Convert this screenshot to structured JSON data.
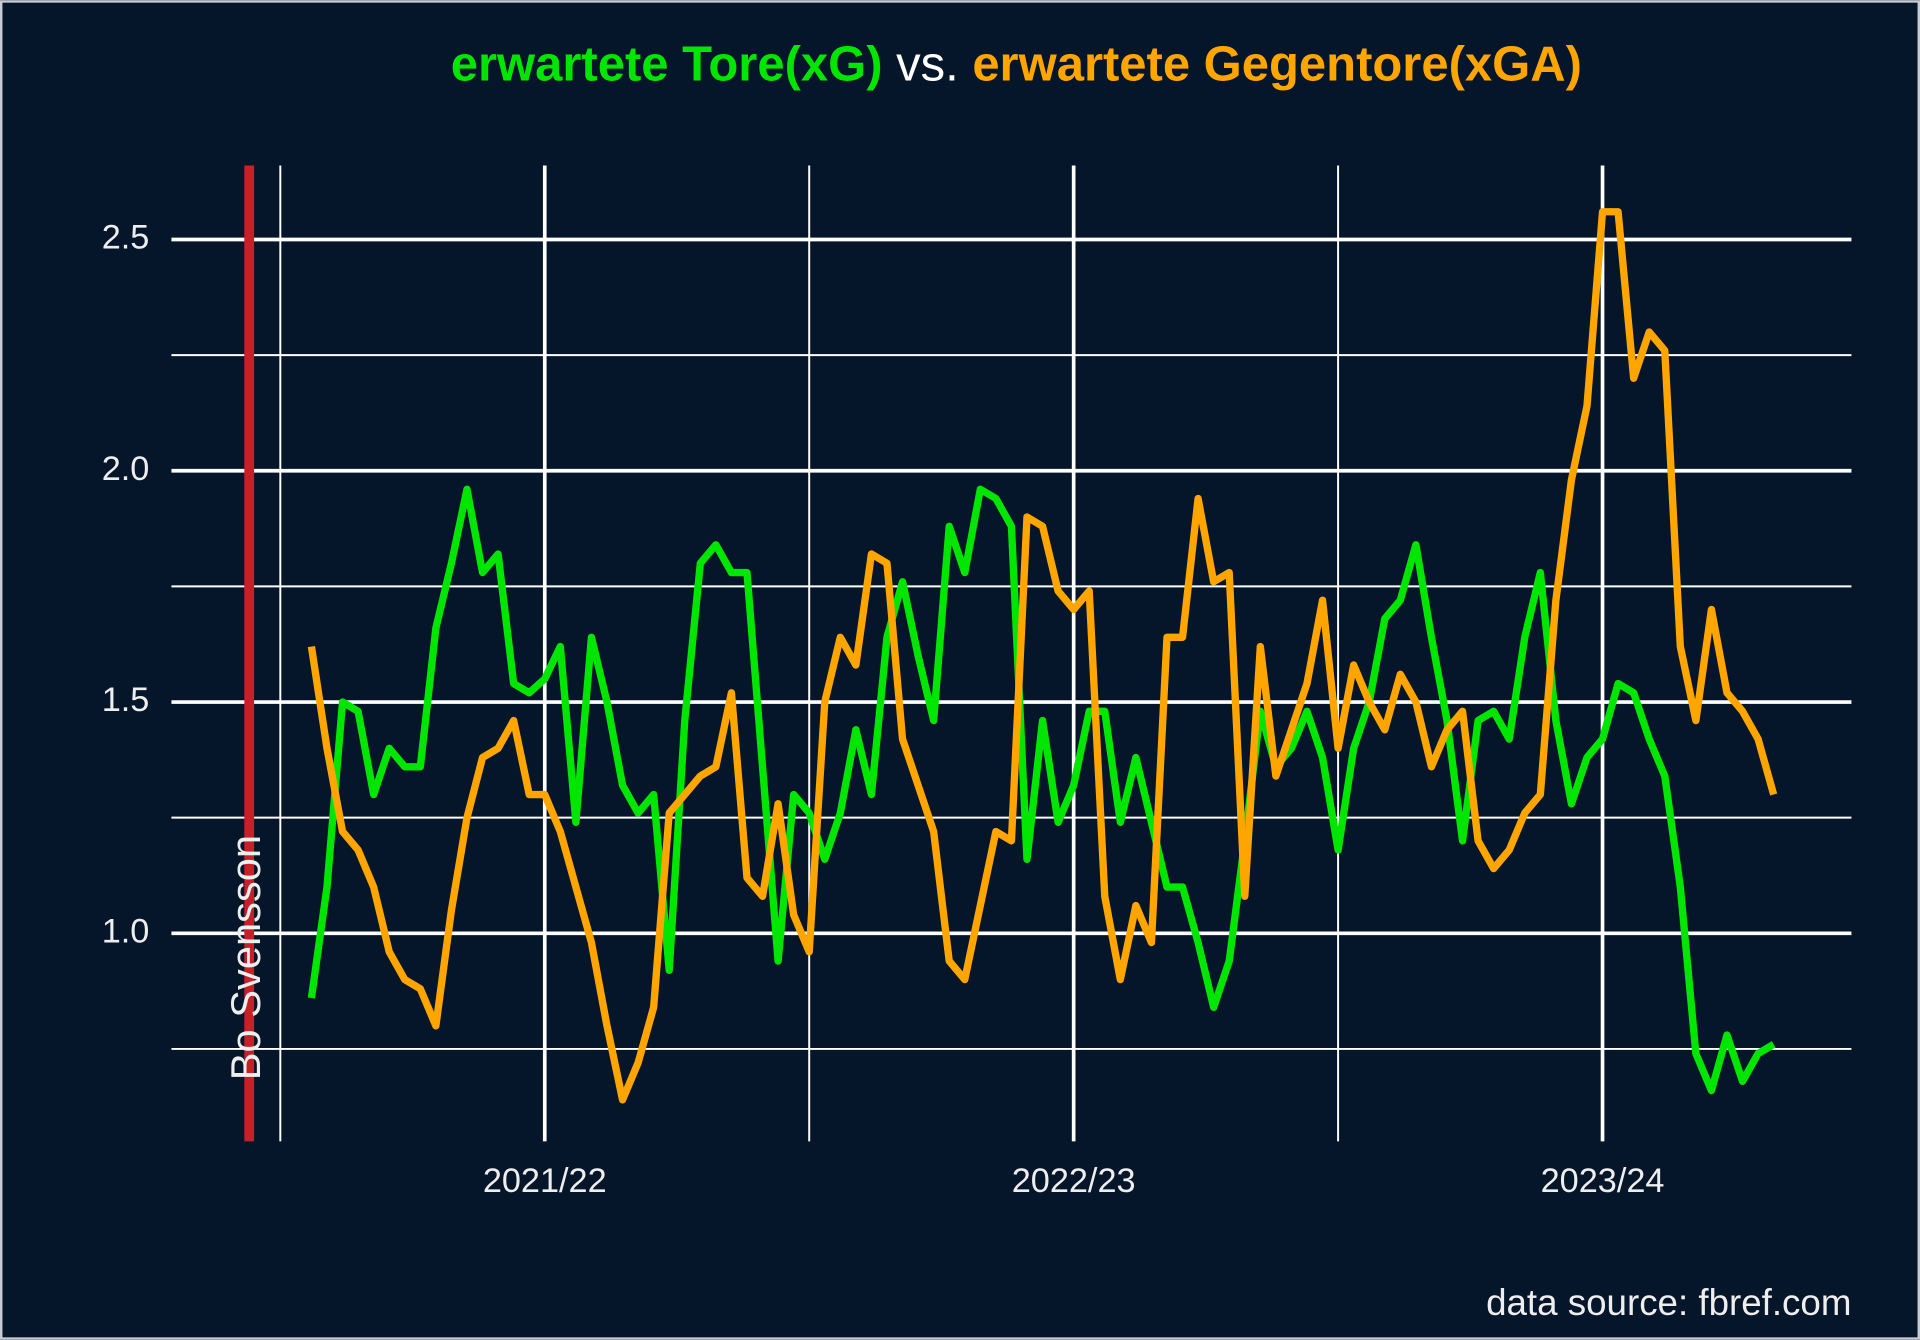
{
  "chart_data": {
    "type": "line",
    "title_connector": "vs.",
    "caption": "data source: fbref.com",
    "x": [
      1,
      2,
      3,
      4,
      5,
      6,
      7,
      8,
      9,
      10,
      11,
      12,
      13,
      14,
      15,
      16,
      17,
      18,
      19,
      20,
      21,
      22,
      23,
      24,
      25,
      26,
      27,
      28,
      29,
      30,
      31,
      32,
      33,
      34,
      35,
      36,
      37,
      38,
      39,
      40,
      41,
      42,
      43,
      44,
      45,
      46,
      47,
      48,
      49,
      50,
      51,
      52,
      53,
      54,
      55,
      56,
      57,
      58,
      59,
      60,
      61,
      62,
      63,
      64,
      65,
      66,
      67,
      68,
      69,
      70,
      71,
      72,
      73,
      74,
      75,
      76,
      77,
      78,
      79,
      80,
      81,
      82,
      83,
      84,
      85,
      86,
      87,
      88,
      89,
      90,
      91,
      92,
      93,
      94,
      95
    ],
    "series": [
      {
        "name": "erwartete Tore(xG)",
        "color": "#00e600",
        "values": [
          0.86,
          1.1,
          1.5,
          1.48,
          1.3,
          1.4,
          1.36,
          1.36,
          1.66,
          1.8,
          1.96,
          1.78,
          1.82,
          1.54,
          1.52,
          1.55,
          1.62,
          1.24,
          1.64,
          1.5,
          1.32,
          1.26,
          1.3,
          0.92,
          1.46,
          1.8,
          1.84,
          1.78,
          1.78,
          1.36,
          0.94,
          1.3,
          1.26,
          1.16,
          1.26,
          1.44,
          1.3,
          1.64,
          1.76,
          1.6,
          1.46,
          1.88,
          1.78,
          1.96,
          1.94,
          1.88,
          1.16,
          1.46,
          1.24,
          1.32,
          1.48,
          1.48,
          1.24,
          1.38,
          1.24,
          1.1,
          1.1,
          0.98,
          0.84,
          0.94,
          1.2,
          1.48,
          1.36,
          1.4,
          1.48,
          1.38,
          1.18,
          1.4,
          1.5,
          1.68,
          1.72,
          1.84,
          1.64,
          1.46,
          1.2,
          1.46,
          1.48,
          1.42,
          1.64,
          1.78,
          1.46,
          1.28,
          1.38,
          1.42,
          1.54,
          1.52,
          1.42,
          1.34,
          1.1,
          0.74,
          0.66,
          0.78,
          0.68,
          0.74,
          0.76
        ]
      },
      {
        "name": "erwartete Gegentore(xGA)",
        "color": "#ffa500",
        "values": [
          1.62,
          1.4,
          1.22,
          1.18,
          1.1,
          0.96,
          0.9,
          0.88,
          0.8,
          1.05,
          1.25,
          1.38,
          1.4,
          1.46,
          1.3,
          1.3,
          1.22,
          1.1,
          0.98,
          0.8,
          0.64,
          0.72,
          0.84,
          1.26,
          1.3,
          1.34,
          1.36,
          1.52,
          1.12,
          1.08,
          1.28,
          1.04,
          0.96,
          1.5,
          1.64,
          1.58,
          1.82,
          1.8,
          1.42,
          1.32,
          1.22,
          0.94,
          0.9,
          1.06,
          1.22,
          1.2,
          1.9,
          1.88,
          1.74,
          1.7,
          1.74,
          1.08,
          0.9,
          1.06,
          0.98,
          1.64,
          1.64,
          1.94,
          1.76,
          1.78,
          1.08,
          1.62,
          1.34,
          1.44,
          1.54,
          1.72,
          1.4,
          1.58,
          1.5,
          1.44,
          1.56,
          1.5,
          1.36,
          1.44,
          1.48,
          1.2,
          1.14,
          1.18,
          1.26,
          1.3,
          1.72,
          1.98,
          2.14,
          2.56,
          2.56,
          2.2,
          2.3,
          2.26,
          1.62,
          1.46,
          1.7,
          1.52,
          1.48,
          1.42,
          1.3
        ]
      }
    ],
    "xlim": [
      -8,
      100
    ],
    "xticks": [
      {
        "value": 16,
        "label": "2021/22"
      },
      {
        "value": 50,
        "label": "2022/23"
      },
      {
        "value": 84,
        "label": "2023/24"
      }
    ],
    "xminorticks": [
      -1,
      33,
      67
    ],
    "ylim": [
      0.55,
      2.66
    ],
    "yticks": [
      {
        "value": 1,
        "label": "1.0"
      },
      1.5,
      {
        "value": 2,
        "label": "2.0"
      },
      2.5
    ],
    "yminorticks": [
      0.75,
      1.25,
      1.75,
      2.25
    ],
    "grid": true,
    "annotations": [
      {
        "x": -3,
        "label": "Bo Svensson",
        "color": "#c8202a"
      }
    ]
  }
}
